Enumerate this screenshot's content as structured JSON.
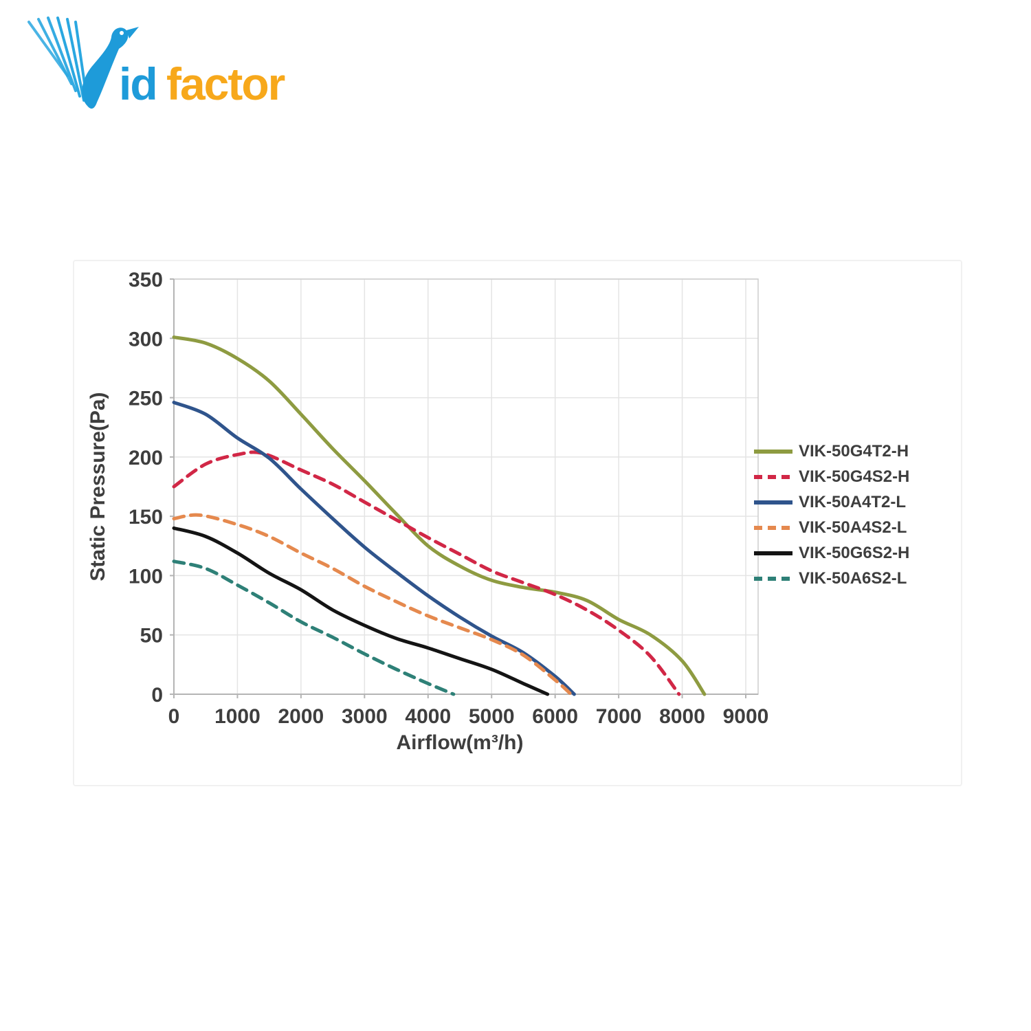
{
  "brand": {
    "name": "VidFactor",
    "blue_text": "id",
    "orange_text": "factor",
    "blue_color": "#1e9bd9",
    "orange_color": "#f7a81b"
  },
  "colors": {
    "grid": "#e4e4e4",
    "frame": "#cdcdcd",
    "axis": "#b4b4b4",
    "text": "#3e3e3e"
  },
  "chart_data": {
    "type": "line",
    "title": "",
    "xlabel": "Airflow(m³/h)",
    "ylabel": "Static Pressure(Pa)",
    "xlim": [
      0,
      9000
    ],
    "ylim": [
      0,
      350
    ],
    "x_ticks": [
      0,
      1000,
      2000,
      3000,
      4000,
      5000,
      6000,
      7000,
      8000,
      9000
    ],
    "y_ticks": [
      0,
      50,
      100,
      150,
      200,
      250,
      300,
      350
    ],
    "grid": true,
    "legend_position": "right",
    "series": [
      {
        "name": "VIK-50G4T2-H",
        "color": "#8e9b41",
        "style": "solid",
        "points": [
          [
            0,
            301
          ],
          [
            500,
            296
          ],
          [
            1000,
            283
          ],
          [
            1500,
            264
          ],
          [
            2000,
            236
          ],
          [
            2500,
            207
          ],
          [
            3000,
            180
          ],
          [
            3500,
            152
          ],
          [
            4000,
            125
          ],
          [
            4500,
            108
          ],
          [
            5000,
            96
          ],
          [
            5500,
            90
          ],
          [
            6000,
            86
          ],
          [
            6500,
            79
          ],
          [
            7000,
            63
          ],
          [
            7500,
            50
          ],
          [
            8000,
            28
          ],
          [
            8350,
            0
          ]
        ]
      },
      {
        "name": "VIK-50G4S2-H",
        "color": "#d12746",
        "style": "dashed",
        "points": [
          [
            0,
            175
          ],
          [
            500,
            194
          ],
          [
            1000,
            202
          ],
          [
            1400,
            203
          ],
          [
            2000,
            189
          ],
          [
            2500,
            177
          ],
          [
            3000,
            162
          ],
          [
            3500,
            147
          ],
          [
            4000,
            132
          ],
          [
            4500,
            118
          ],
          [
            5000,
            104
          ],
          [
            5500,
            94
          ],
          [
            6000,
            84
          ],
          [
            6500,
            71
          ],
          [
            7000,
            54
          ],
          [
            7500,
            32
          ],
          [
            7950,
            0
          ]
        ]
      },
      {
        "name": "VIK-50A4T2-L",
        "color": "#2f548c",
        "style": "solid",
        "points": [
          [
            0,
            246
          ],
          [
            500,
            236
          ],
          [
            1000,
            216
          ],
          [
            1500,
            199
          ],
          [
            2000,
            173
          ],
          [
            2500,
            148
          ],
          [
            3000,
            124
          ],
          [
            3500,
            103
          ],
          [
            4000,
            83
          ],
          [
            4500,
            65
          ],
          [
            5000,
            49
          ],
          [
            5500,
            35
          ],
          [
            6000,
            15
          ],
          [
            6300,
            0
          ]
        ]
      },
      {
        "name": "VIK-50A4S2-L",
        "color": "#e5894e",
        "style": "dashed",
        "points": [
          [
            0,
            148
          ],
          [
            400,
            151
          ],
          [
            1000,
            143
          ],
          [
            1500,
            133
          ],
          [
            2000,
            119
          ],
          [
            2500,
            106
          ],
          [
            3000,
            91
          ],
          [
            3500,
            78
          ],
          [
            4000,
            66
          ],
          [
            4500,
            56
          ],
          [
            5000,
            46
          ],
          [
            5500,
            33
          ],
          [
            6000,
            12
          ],
          [
            6250,
            0
          ]
        ]
      },
      {
        "name": "VIK-50G6S2-H",
        "color": "#141414",
        "style": "solid",
        "points": [
          [
            0,
            140
          ],
          [
            500,
            133
          ],
          [
            1000,
            119
          ],
          [
            1500,
            102
          ],
          [
            2000,
            88
          ],
          [
            2500,
            71
          ],
          [
            3000,
            58
          ],
          [
            3500,
            47
          ],
          [
            4000,
            39
          ],
          [
            4500,
            30
          ],
          [
            5000,
            21
          ],
          [
            5500,
            9
          ],
          [
            5880,
            0
          ]
        ]
      },
      {
        "name": "VIK-50A6S2-L",
        "color": "#2e8077",
        "style": "dashed",
        "points": [
          [
            0,
            112
          ],
          [
            500,
            106
          ],
          [
            1000,
            92
          ],
          [
            1500,
            77
          ],
          [
            2000,
            61
          ],
          [
            2500,
            48
          ],
          [
            3000,
            34
          ],
          [
            3500,
            21
          ],
          [
            4000,
            9
          ],
          [
            4400,
            0
          ]
        ]
      }
    ]
  }
}
